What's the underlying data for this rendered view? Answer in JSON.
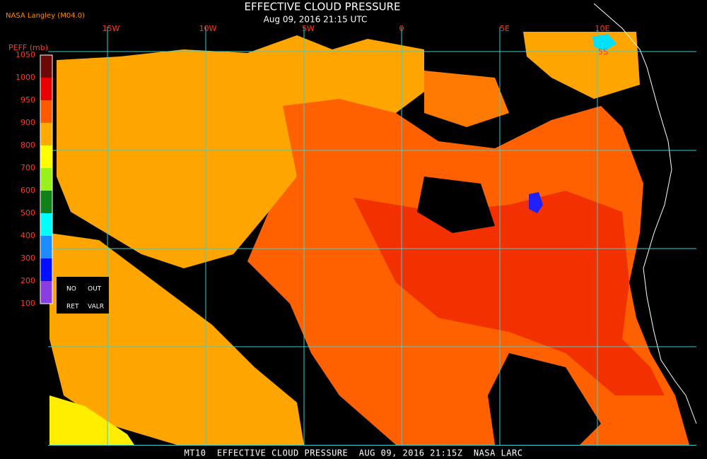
{
  "header": {
    "source": "NASA Langley (M04.0)",
    "title": "EFFECTIVE CLOUD PRESSURE",
    "subtitle": "Aug 09, 2016 21:15 UTC"
  },
  "grid_labels": {
    "longitudes": [
      "15W",
      "10W",
      "5W",
      "0",
      "5E",
      "10E"
    ],
    "latitudes": [
      "5S"
    ]
  },
  "colorbar": {
    "label": "PEFF (mb)",
    "ticks": [
      1050,
      1000,
      950,
      900,
      800,
      700,
      600,
      500,
      400,
      300,
      200,
      100
    ],
    "colors": [
      "#6b0808",
      "#e80000",
      "#ff5a00",
      "#ffaa00",
      "#ffff00",
      "#9af01a",
      "#10801a",
      "#00ffff",
      "#1e8cff",
      "#0010ff",
      "#8a3ee0"
    ]
  },
  "legend": {
    "no": "NO",
    "out": "OUT",
    "ret": "RET",
    "valr": "VALR"
  },
  "footer": "MT10  EFFECTIVE CLOUD PRESSURE  AUG 09, 2016 21:15Z  NASA LARC"
}
